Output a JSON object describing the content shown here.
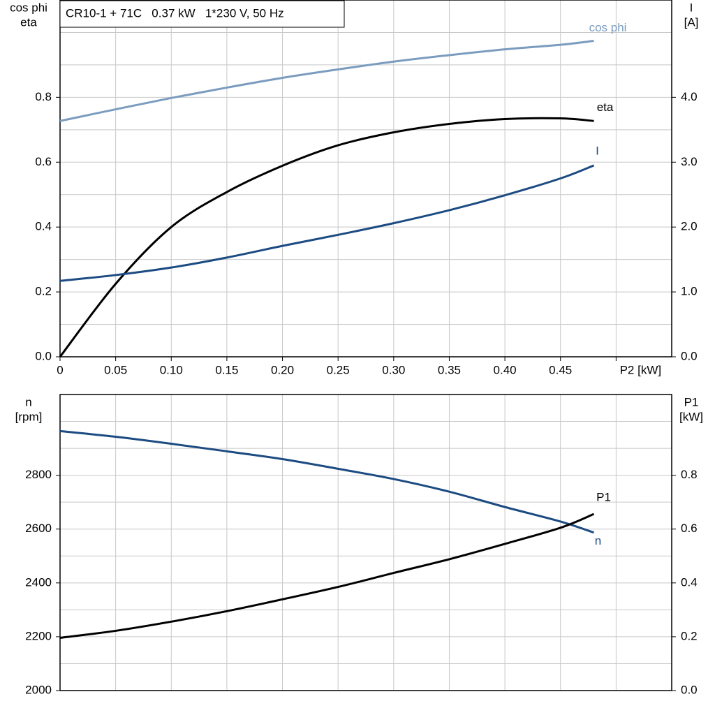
{
  "chart_data": [
    {
      "type": "line",
      "title": "CR10-1 + 71C   0.37 kW   1*230 V, 50 Hz",
      "ylabel": [
        "cos phi",
        "eta"
      ],
      "y2label": [
        "I",
        "[A]"
      ],
      "x": [
        0,
        0.05,
        0.1,
        0.15,
        0.2,
        0.25,
        0.3,
        0.35,
        0.4,
        0.45,
        0.48
      ],
      "xlim": [
        0,
        0.55
      ],
      "xticks": [
        0,
        0.05,
        {
          "value": 0.1,
          "label": "0.10"
        },
        0.15,
        {
          "value": 0.2,
          "label": "0.20"
        },
        0.25,
        {
          "value": 0.3,
          "label": "0.30"
        },
        0.35,
        {
          "value": 0.4,
          "label": "0.40"
        },
        0.45,
        {
          "value": 0.5,
          "label": "P2 [kW]"
        }
      ],
      "ylim": [
        0,
        1.1
      ],
      "yticks": [
        {
          "value": 0,
          "label": "0.0"
        },
        0.2,
        0.4,
        0.6,
        0.8
      ],
      "y_minor_ticks": [
        0.1,
        0.3,
        0.5,
        0.7,
        0.9,
        1.0
      ],
      "y2lim": [
        0,
        5.5
      ],
      "y2ticks": [
        {
          "value": 0,
          "label": "0.0"
        },
        {
          "value": 1,
          "label": "1.0"
        },
        {
          "value": 2,
          "label": "2.0"
        },
        {
          "value": 3,
          "label": "3.0"
        },
        {
          "value": 4,
          "label": "4.0"
        }
      ],
      "grid": true,
      "series": [
        {
          "name": "cos phi",
          "color": "#7b9cbf",
          "values": [
            0.727,
            0.763,
            0.798,
            0.83,
            0.86,
            0.886,
            0.91,
            0.93,
            0.948,
            0.962,
            0.974
          ]
        },
        {
          "name": "eta",
          "color": "#000000",
          "values": [
            0,
            0.225,
            0.4,
            0.508,
            0.589,
            0.652,
            0.692,
            0.718,
            0.733,
            0.735,
            0.727
          ]
        },
        {
          "name": "I",
          "color": "#1c4b82",
          "axis": "y2",
          "values": [
            1.17,
            1.26,
            1.376,
            1.53,
            1.71,
            1.88,
            2.06,
            2.26,
            2.49,
            2.75,
            2.95
          ]
        }
      ]
    },
    {
      "type": "line",
      "ylabel": [
        "n",
        "[rpm]"
      ],
      "y2label": [
        "P1",
        "[kW]"
      ],
      "x": [
        0,
        0.05,
        0.1,
        0.15,
        0.2,
        0.25,
        0.3,
        0.35,
        0.4,
        0.45,
        0.48
      ],
      "xlim": [
        0,
        0.55
      ],
      "x_grid": [
        0.05,
        0.1,
        0.15,
        0.2,
        0.25,
        0.3,
        0.35,
        0.4,
        0.45,
        0.5
      ],
      "ylim": [
        2000,
        3100
      ],
      "yticks": [
        2000,
        2200,
        2400,
        2600,
        2800
      ],
      "y_minor_ticks": [
        2100,
        2300,
        2500,
        2700,
        2900,
        3000
      ],
      "y2lim": [
        0,
        1.1
      ],
      "y2ticks": [
        {
          "value": 0,
          "label": "0.0"
        },
        0.2,
        0.4,
        0.6,
        0.8
      ],
      "grid": true,
      "series": [
        {
          "name": "n",
          "color": "#1c4b82",
          "values": [
            2964,
            2943,
            2917,
            2889,
            2860,
            2824,
            2786,
            2739,
            2682,
            2628,
            2587
          ]
        },
        {
          "name": "P1",
          "color": "#000000",
          "axis": "y2",
          "values": [
            0.196,
            0.222,
            0.256,
            0.295,
            0.339,
            0.385,
            0.437,
            0.488,
            0.545,
            0.605,
            0.656
          ]
        }
      ]
    }
  ]
}
